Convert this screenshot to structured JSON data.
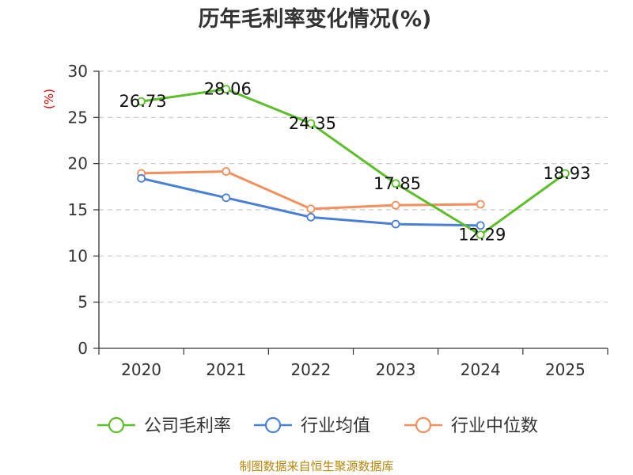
{
  "chart_data": {
    "type": "line",
    "title": "历年毛利率变化情况(%)",
    "ylabel": "(%)",
    "xlabel": "",
    "categories": [
      "2020",
      "2021",
      "2022",
      "2023",
      "2024",
      "2025"
    ],
    "ylim": [
      0,
      30
    ],
    "yticks": [
      0,
      5,
      10,
      15,
      20,
      25,
      30
    ],
    "grid": true,
    "legend_position": "bottom",
    "series": [
      {
        "name": "公司毛利率",
        "color": "#5cbf2a",
        "values": [
          26.73,
          28.06,
          24.35,
          17.85,
          12.29,
          18.93
        ],
        "labels": [
          "26.73",
          "28.06",
          "24.35",
          "17.85",
          "12.29",
          "18.93"
        ]
      },
      {
        "name": "行业均值",
        "color": "#4a7fd6",
        "values": [
          18.4,
          16.3,
          14.2,
          13.45,
          13.3,
          null
        ]
      },
      {
        "name": "行业中位数",
        "color": "#f28f5c",
        "values": [
          18.95,
          19.15,
          15.1,
          15.5,
          15.6,
          null
        ]
      }
    ]
  },
  "source_text": "制图数据来自恒生聚源数据库"
}
